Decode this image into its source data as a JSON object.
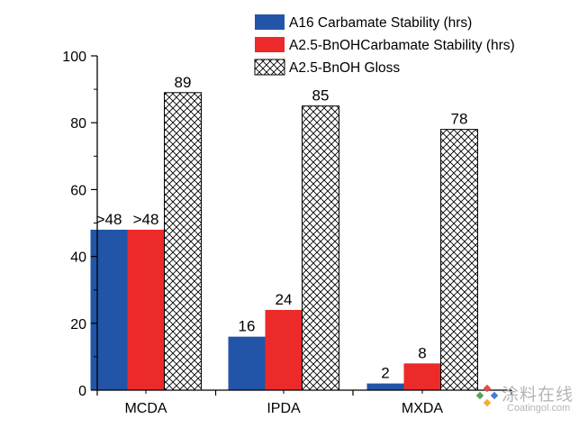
{
  "chart_data": {
    "type": "bar",
    "categories": [
      "MCDA",
      "IPDA",
      "MXDA"
    ],
    "series": [
      {
        "name": "A16 Carbamate Stability (hrs)",
        "color": "#2255a8",
        "pattern": "solid",
        "values": [
          48,
          16,
          2
        ],
        "labels": [
          ">48",
          "16",
          "2"
        ]
      },
      {
        "name": "A2.5-BnOHCarbamate Stability (hrs)",
        "color": "#ec2a2a",
        "pattern": "solid",
        "values": [
          48,
          24,
          8
        ],
        "labels": [
          ">48",
          "24",
          "8"
        ]
      },
      {
        "name": "A2.5-BnOH Gloss",
        "color": "#000000",
        "pattern": "crosshatch",
        "values": [
          89,
          85,
          78
        ],
        "labels": [
          "89",
          "85",
          "78"
        ]
      }
    ],
    "ylim": [
      0,
      100
    ],
    "yticks": [
      0,
      20,
      40,
      60,
      80,
      100
    ],
    "ytick_labels": [
      "0",
      "20",
      "40",
      "60",
      "80",
      "100"
    ],
    "title": "",
    "xlabel": "",
    "ylabel": "",
    "legend_position": "top-right"
  },
  "watermark": {
    "text": "涂料在线",
    "subtext": "Coatingol.com"
  }
}
